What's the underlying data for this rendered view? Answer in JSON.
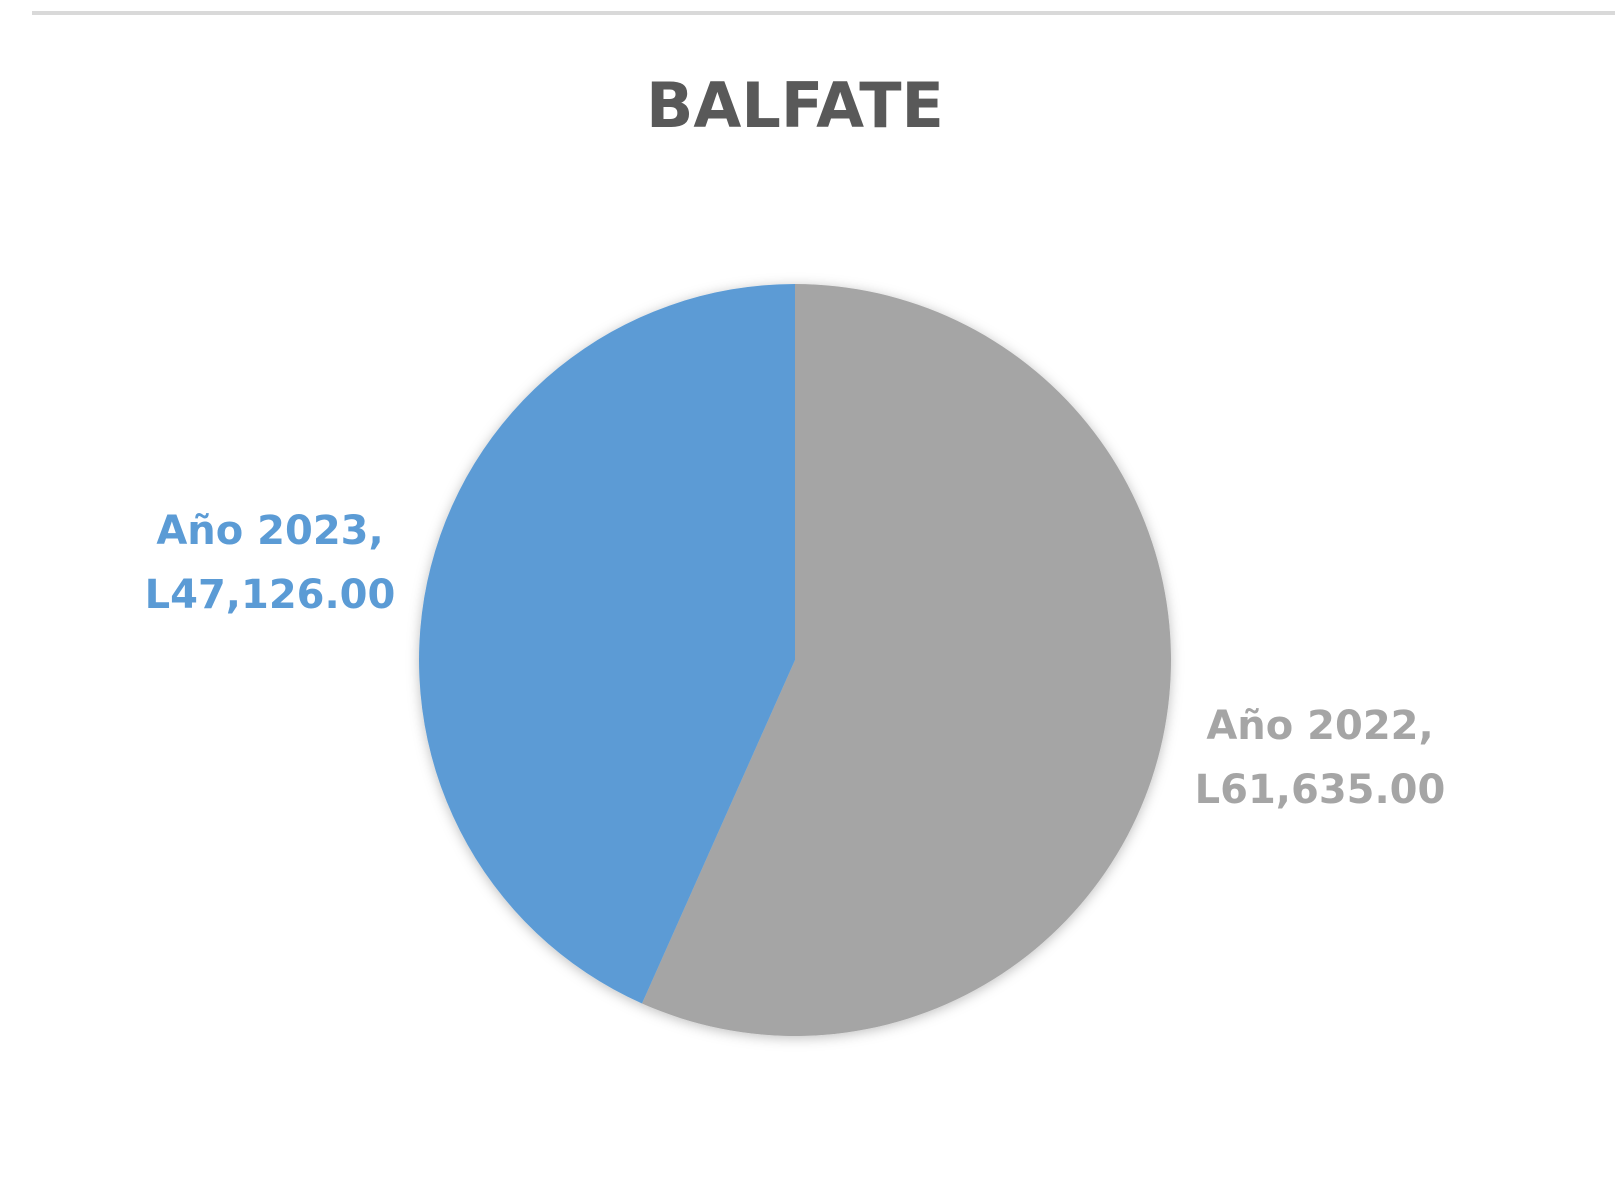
{
  "chart_data": {
    "type": "pie",
    "title": "BALFATE",
    "categories": [
      "Año 2022,",
      "Año 2023,"
    ],
    "values": [
      61635,
      47126
    ],
    "value_labels": [
      "L61,635.00",
      "L47,126.00"
    ],
    "colors": [
      "#a5a5a5",
      "#5b9bd5"
    ]
  }
}
